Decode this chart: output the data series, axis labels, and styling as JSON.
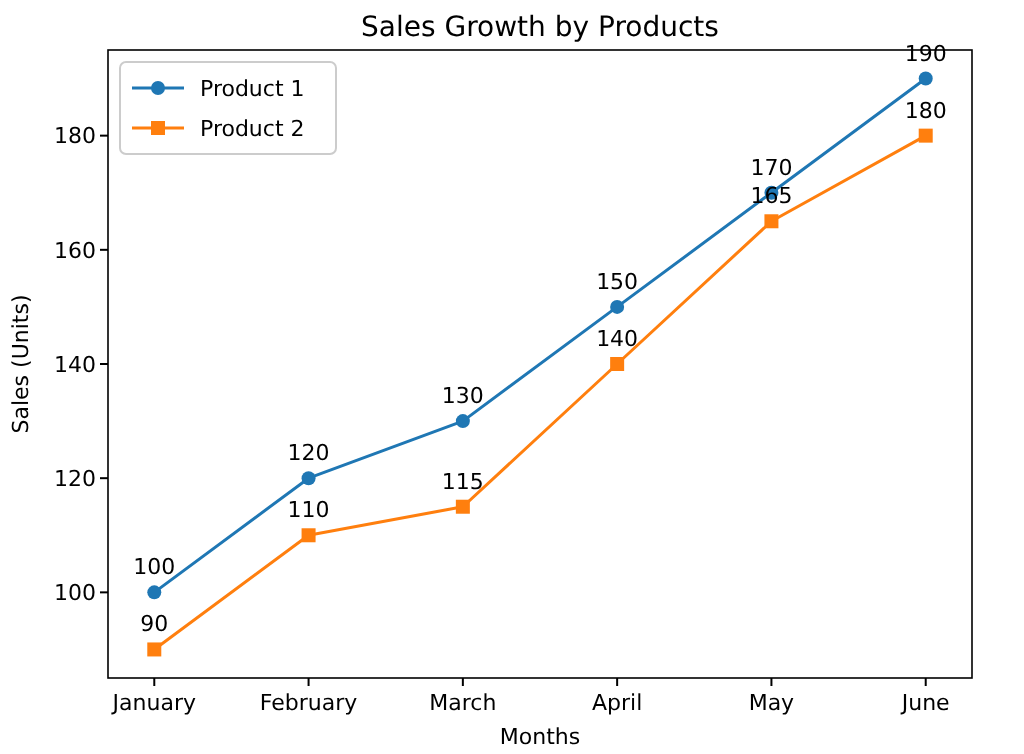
{
  "chart_data": {
    "type": "line",
    "title": "Sales Growth by Products",
    "xlabel": "Months",
    "ylabel": "Sales (Units)",
    "categories": [
      "January",
      "February",
      "March",
      "April",
      "May",
      "June"
    ],
    "series": [
      {
        "name": "Product 1",
        "color": "#1f77b4",
        "marker": "circle",
        "values": [
          100,
          120,
          130,
          150,
          170,
          190
        ]
      },
      {
        "name": "Product 2",
        "color": "#ff7f0e",
        "marker": "square",
        "values": [
          90,
          110,
          115,
          140,
          165,
          180
        ]
      }
    ],
    "ylim": [
      85,
      195
    ],
    "yticks": [
      100,
      120,
      140,
      160,
      180
    ],
    "grid": false,
    "legend": "top left",
    "data_labels": true,
    "line_style": "solid"
  }
}
